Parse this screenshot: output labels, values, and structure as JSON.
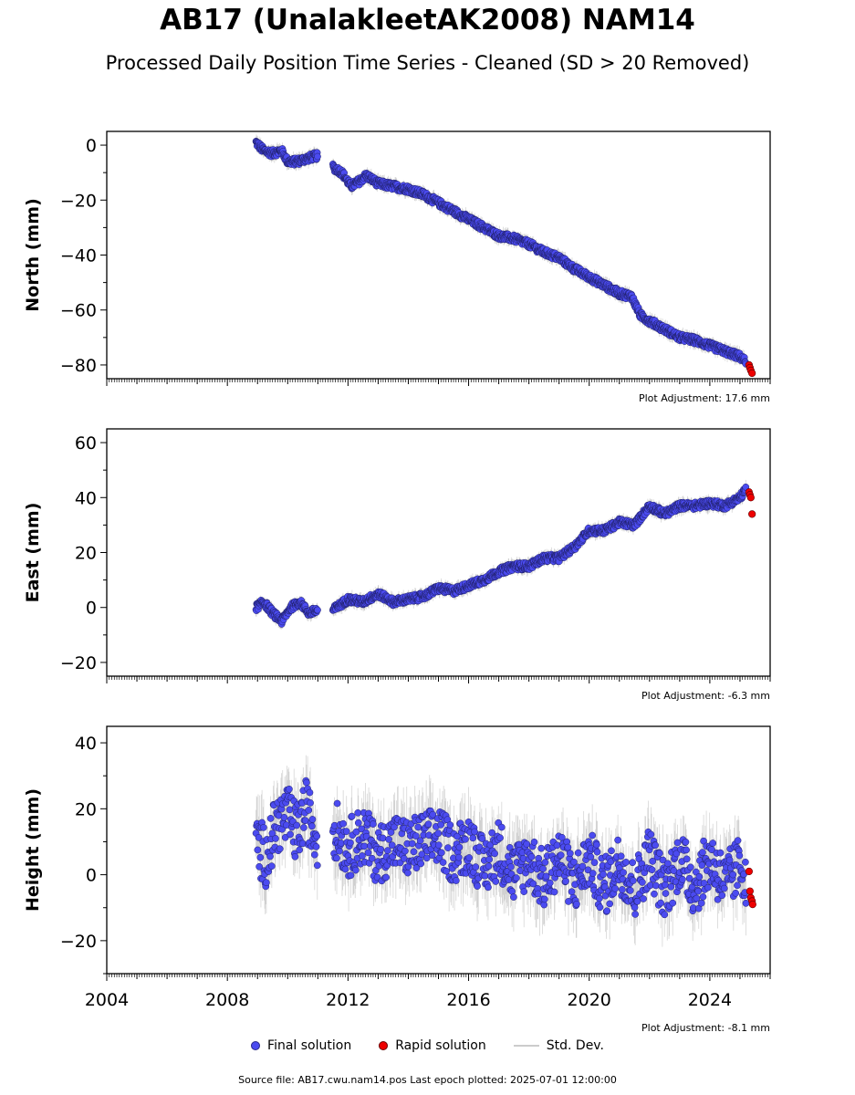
{
  "title": "AB17 (UnalakleetAK2008) NAM14",
  "subtitle": "Processed Daily Position Time Series - Cleaned (SD > 20 Removed)",
  "legend": {
    "final": "Final solution",
    "rapid": "Rapid solution",
    "sd": "Std. Dev."
  },
  "footer": "Source file: AB17.cwu.nam14.pos  Last epoch plotted: 2025-07-01 12:00:00",
  "colors": {
    "final": "#4b4bf0",
    "final_edge": "#20206a",
    "rapid": "#ee0000",
    "rapid_edge": "#600000",
    "sd": "#b5b5b5"
  },
  "chart_data": [
    {
      "type": "scatter",
      "ylabel": "North (mm)",
      "xlim": [
        2004,
        2026
      ],
      "ylim": [
        -85,
        5
      ],
      "yticks": [
        -80,
        -60,
        -40,
        -20,
        0
      ],
      "adjustment": "Plot Adjustment: 17.6 mm",
      "series": [
        {
          "name": "Final solution",
          "segments": [
            {
              "x": [
                2008.95,
                2009.2,
                2009.5,
                2009.8,
                2010.0,
                2010.3,
                2010.6,
                2010.9,
                2011.0
              ],
              "y": [
                1,
                -2,
                -3,
                -2,
                -6,
                -6,
                -5,
                -4,
                -4
              ]
            },
            {
              "x": [
                2011.5,
                2011.8,
                2012.1,
                2012.4,
                2012.6,
                2013.0,
                2013.5,
                2014.0,
                2014.5,
                2015.0,
                2015.5,
                2016.0,
                2016.5,
                2017.0,
                2017.5,
                2018.0,
                2018.5,
                2019.0,
                2019.5,
                2020.0,
                2020.5,
                2021.0,
                2021.4,
                2021.7,
                2022.0,
                2022.5,
                2023.0,
                2023.5,
                2024.0,
                2024.5,
                2025.0,
                2025.2
              ],
              "y": [
                -8,
                -10,
                -15,
                -13,
                -11,
                -14,
                -15,
                -16,
                -18,
                -21,
                -24,
                -27,
                -30,
                -33,
                -34,
                -36,
                -39,
                -41,
                -45,
                -48,
                -51,
                -54,
                -55,
                -62,
                -64,
                -67,
                -70,
                -71,
                -73,
                -75,
                -77,
                -79
              ]
            }
          ]
        },
        {
          "name": "Rapid solution",
          "x": [
            2025.3,
            2025.33,
            2025.36,
            2025.4
          ],
          "y": [
            -80,
            -81,
            -82,
            -83
          ]
        }
      ]
    },
    {
      "type": "scatter",
      "ylabel": "East (mm)",
      "xlim": [
        2004,
        2026
      ],
      "ylim": [
        -25,
        65
      ],
      "yticks": [
        -20,
        0,
        20,
        40,
        60
      ],
      "adjustment": "Plot Adjustment: -6.3 mm",
      "series": [
        {
          "name": "Final solution",
          "segments": [
            {
              "x": [
                2008.95,
                2009.2,
                2009.5,
                2009.8,
                2010.1,
                2010.4,
                2010.7,
                2011.0
              ],
              "y": [
                0,
                2,
                -2,
                -5,
                0,
                2,
                -2,
                -1
              ]
            },
            {
              "x": [
                2011.5,
                2012.0,
                2012.5,
                2013.0,
                2013.5,
                2014.0,
                2014.5,
                2015.0,
                2015.5,
                2016.0,
                2016.5,
                2017.0,
                2017.5,
                2018.0,
                2018.5,
                2019.0,
                2019.5,
                2020.0,
                2020.5,
                2021.0,
                2021.5,
                2022.0,
                2022.5,
                2023.0,
                2023.5,
                2024.0,
                2024.5,
                2025.0,
                2025.2
              ],
              "y": [
                -1,
                3,
                2,
                5,
                2,
                3,
                4,
                7,
                6,
                8,
                10,
                13,
                15,
                15,
                18,
                18,
                22,
                28,
                28,
                31,
                30,
                37,
                34,
                37,
                37,
                38,
                37,
                40,
                43
              ]
            }
          ]
        },
        {
          "name": "Rapid solution",
          "x": [
            2025.3,
            2025.33,
            2025.36,
            2025.4
          ],
          "y": [
            42,
            41,
            40,
            34
          ]
        }
      ]
    },
    {
      "type": "scatter",
      "ylabel": "Height (mm)",
      "xlim": [
        2004,
        2026
      ],
      "ylim": [
        -30,
        45
      ],
      "yticks": [
        -20,
        0,
        20,
        40
      ],
      "xticks": [
        2004,
        2008,
        2012,
        2016,
        2020,
        2024
      ],
      "adjustment": "Plot Adjustment: -8.1 mm",
      "series": [
        {
          "name": "Final solution",
          "segments": [
            {
              "x": [
                2008.95,
                2009.3,
                2009.6,
                2010.0,
                2010.3,
                2010.6,
                2011.0
              ],
              "y": [
                10,
                5,
                15,
                18,
                12,
                20,
                10
              ]
            },
            {
              "x": [
                2011.5,
                2012.0,
                2012.5,
                2013.0,
                2013.5,
                2014.0,
                2014.5,
                2015.0,
                2015.5,
                2016.0,
                2016.5,
                2017.0,
                2017.5,
                2018.0,
                2018.5,
                2019.0,
                2019.5,
                2020.0,
                2020.5,
                2021.0,
                2021.5,
                2022.0,
                2022.5,
                2023.0,
                2023.5,
                2024.0,
                2024.5,
                2025.0,
                2025.2
              ],
              "y": [
                15,
                8,
                12,
                6,
                10,
                8,
                10,
                12,
                6,
                10,
                2,
                8,
                0,
                5,
                -2,
                6,
                -3,
                5,
                -4,
                4,
                -5,
                6,
                -5,
                5,
                -4,
                5,
                -3,
                3,
                0
              ]
            }
          ]
        },
        {
          "name": "Rapid solution",
          "x": [
            2025.3,
            2025.33,
            2025.36,
            2025.4,
            2025.42
          ],
          "y": [
            1,
            -5,
            -7,
            -8,
            -9
          ]
        }
      ]
    }
  ]
}
